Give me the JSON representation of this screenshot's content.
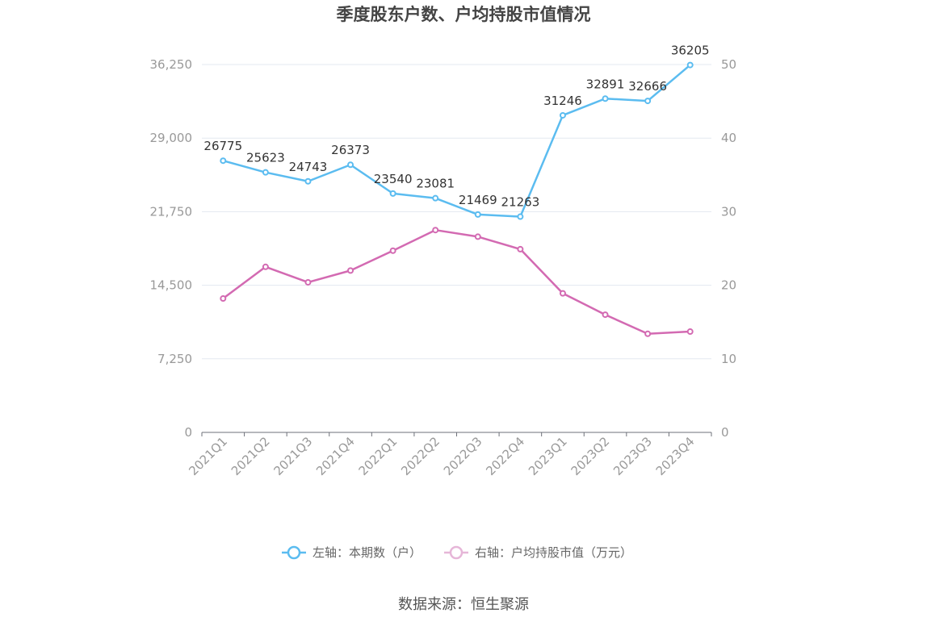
{
  "chart_data": {
    "type": "line",
    "title": "季度股东户数、户均持股市值情况",
    "categories": [
      "2021Q1",
      "2021Q2",
      "2021Q3",
      "2021Q4",
      "2022Q1",
      "2022Q2",
      "2022Q3",
      "2022Q4",
      "2023Q1",
      "2023Q2",
      "2023Q3",
      "2023Q4"
    ],
    "left_axis": {
      "min": 0,
      "max": 36250,
      "ticks": [
        0,
        7250,
        14500,
        21750,
        29000,
        36250
      ],
      "tick_labels": [
        "0",
        "7,250",
        "14,500",
        "21,750",
        "29,000",
        "36,250"
      ]
    },
    "right_axis": {
      "min": 0,
      "max": 50,
      "ticks": [
        0,
        10,
        20,
        30,
        40,
        50
      ],
      "tick_labels": [
        "0",
        "10",
        "20",
        "30",
        "40",
        "50"
      ]
    },
    "series": [
      {
        "name": "左轴：本期数（户）",
        "axis": "left",
        "color": "#5bbcf0",
        "values": [
          26775,
          25623,
          24743,
          26373,
          23540,
          23081,
          21469,
          21263,
          31246,
          32891,
          32666,
          36205
        ],
        "labels": [
          "26775",
          "25623",
          "24743",
          "26373",
          "23540",
          "23081",
          "21469",
          "21263",
          "31246",
          "32891",
          "32666",
          "36205"
        ]
      },
      {
        "name": "右轴：户均持股市值（万元）",
        "axis": "right",
        "color": "#d36ab2",
        "values": [
          18.2,
          22.5,
          20.4,
          22.0,
          24.7,
          27.5,
          26.6,
          24.9,
          18.9,
          16.0,
          13.4,
          13.7
        ]
      }
    ],
    "grid": true,
    "legend_position": "bottom"
  },
  "source": "数据来源：恒生聚源"
}
